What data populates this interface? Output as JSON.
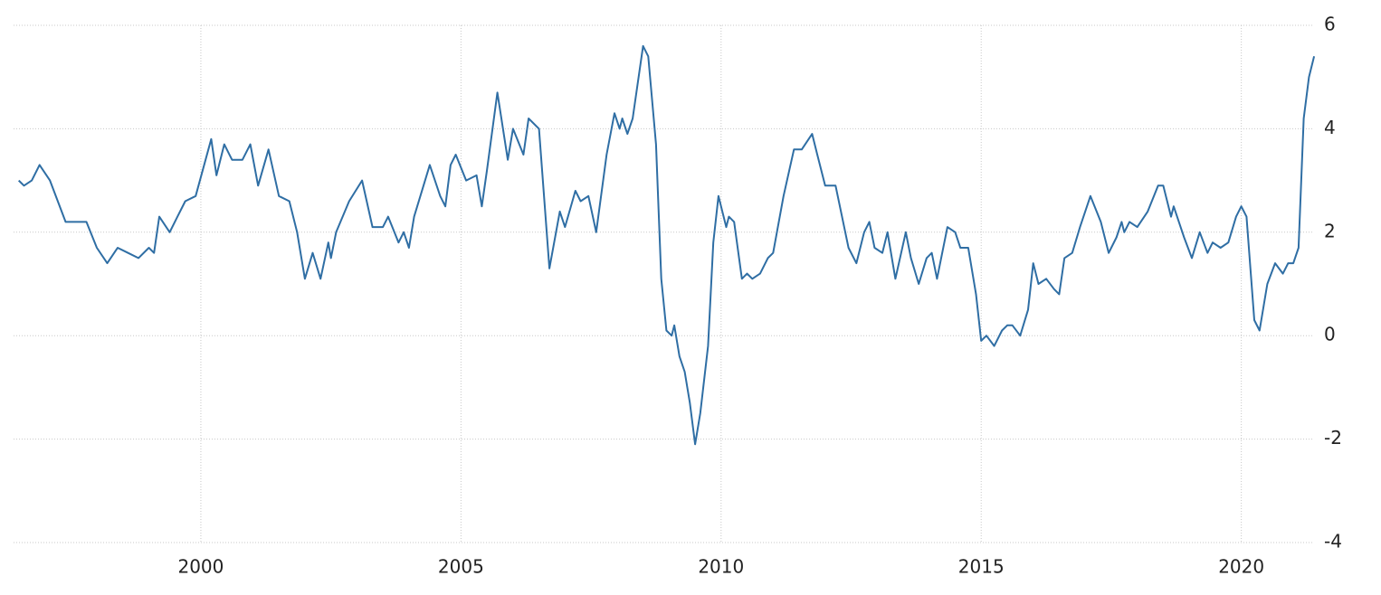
{
  "chart_data": {
    "type": "line",
    "xlim": [
      1996.4,
      2021.45
    ],
    "ylim": [
      -4,
      6
    ],
    "xticks": [
      2000,
      2005,
      2010,
      2015,
      2020
    ],
    "yticks": [
      -4,
      -2,
      0,
      2,
      4,
      6
    ],
    "grid": true,
    "x": [
      1996.5,
      1996.6,
      1996.75,
      1996.9,
      1997.1,
      1997.4,
      1997.6,
      1997.8,
      1998.0,
      1998.2,
      1998.4,
      1998.6,
      1998.8,
      1999.0,
      1999.1,
      1999.2,
      1999.4,
      1999.55,
      1999.7,
      1999.9,
      2000.2,
      2000.3,
      2000.45,
      2000.6,
      2000.8,
      2000.95,
      2001.1,
      2001.3,
      2001.5,
      2001.7,
      2001.85,
      2002.0,
      2002.15,
      2002.3,
      2002.45,
      2002.5,
      2002.6,
      2002.85,
      2003.1,
      2003.3,
      2003.5,
      2003.6,
      2003.8,
      2003.9,
      2004.0,
      2004.1,
      2004.4,
      2004.6,
      2004.7,
      2004.8,
      2004.9,
      2005.1,
      2005.3,
      2005.4,
      2005.5,
      2005.7,
      2005.9,
      2006.0,
      2006.2,
      2006.3,
      2006.5,
      2006.7,
      2006.9,
      2007.0,
      2007.2,
      2007.3,
      2007.45,
      2007.6,
      2007.8,
      2007.95,
      2008.05,
      2008.1,
      2008.2,
      2008.3,
      2008.5,
      2008.6,
      2008.75,
      2008.85,
      2008.95,
      2009.05,
      2009.1,
      2009.2,
      2009.3,
      2009.4,
      2009.5,
      2009.6,
      2009.75,
      2009.85,
      2009.95,
      2010.1,
      2010.15,
      2010.25,
      2010.4,
      2010.5,
      2010.6,
      2010.75,
      2010.9,
      2011.0,
      2011.2,
      2011.4,
      2011.55,
      2011.75,
      2011.85,
      2012.0,
      2012.2,
      2012.45,
      2012.6,
      2012.75,
      2012.85,
      2012.95,
      2013.1,
      2013.2,
      2013.35,
      2013.55,
      2013.65,
      2013.8,
      2013.95,
      2014.05,
      2014.15,
      2014.35,
      2014.5,
      2014.6,
      2014.75,
      2014.9,
      2015.0,
      2015.1,
      2015.25,
      2015.4,
      2015.5,
      2015.6,
      2015.75,
      2015.9,
      2016.0,
      2016.1,
      2016.25,
      2016.4,
      2016.5,
      2016.6,
      2016.75,
      2016.9,
      2017.1,
      2017.3,
      2017.45,
      2017.6,
      2017.7,
      2017.75,
      2017.85,
      2018.0,
      2018.2,
      2018.4,
      2018.5,
      2018.65,
      2018.7,
      2018.9,
      2019.05,
      2019.2,
      2019.35,
      2019.45,
      2019.6,
      2019.75,
      2019.9,
      2020.0,
      2020.1,
      2020.25,
      2020.35,
      2020.5,
      2020.65,
      2020.8,
      2020.9,
      2021.0,
      2021.1,
      2021.2,
      2021.3,
      2021.4
    ],
    "series": [
      {
        "color": "#2f6ea4",
        "values": [
          3.0,
          2.9,
          3.0,
          3.3,
          3.0,
          2.2,
          2.2,
          2.2,
          1.7,
          1.4,
          1.7,
          1.6,
          1.5,
          1.7,
          1.6,
          2.3,
          2.0,
          2.3,
          2.6,
          2.7,
          3.8,
          3.1,
          3.7,
          3.4,
          3.4,
          3.7,
          2.9,
          3.6,
          2.7,
          2.6,
          2.0,
          1.1,
          1.6,
          1.1,
          1.8,
          1.5,
          2.0,
          2.6,
          3.0,
          2.1,
          2.1,
          2.3,
          1.8,
          2.0,
          1.7,
          2.3,
          3.3,
          2.7,
          2.5,
          3.3,
          3.5,
          3.0,
          3.1,
          2.5,
          3.2,
          4.7,
          3.4,
          4.0,
          3.5,
          4.2,
          4.0,
          1.3,
          2.4,
          2.1,
          2.8,
          2.6,
          2.7,
          2.0,
          3.5,
          4.3,
          4.0,
          4.2,
          3.9,
          4.2,
          5.6,
          5.4,
          3.7,
          1.1,
          0.1,
          0.0,
          0.2,
          -0.4,
          -0.7,
          -1.3,
          -2.1,
          -1.5,
          -0.2,
          1.8,
          2.7,
          2.1,
          2.3,
          2.2,
          1.1,
          1.2,
          1.1,
          1.2,
          1.5,
          1.6,
          2.7,
          3.6,
          3.6,
          3.9,
          3.5,
          2.9,
          2.9,
          1.7,
          1.4,
          2.0,
          2.2,
          1.7,
          1.6,
          2.0,
          1.1,
          2.0,
          1.5,
          1.0,
          1.5,
          1.6,
          1.1,
          2.1,
          2.0,
          1.7,
          1.7,
          0.8,
          -0.1,
          0.0,
          -0.2,
          0.1,
          0.2,
          0.2,
          0.0,
          0.5,
          1.4,
          1.0,
          1.1,
          0.9,
          0.8,
          1.5,
          1.6,
          2.1,
          2.7,
          2.2,
          1.6,
          1.9,
          2.2,
          2.0,
          2.2,
          2.1,
          2.4,
          2.9,
          2.9,
          2.3,
          2.5,
          1.9,
          1.5,
          2.0,
          1.6,
          1.8,
          1.7,
          1.8,
          2.3,
          2.5,
          2.3,
          0.3,
          0.1,
          1.0,
          1.4,
          1.2,
          1.4,
          1.4,
          1.7,
          4.2,
          5.0,
          5.4
        ]
      }
    ]
  }
}
